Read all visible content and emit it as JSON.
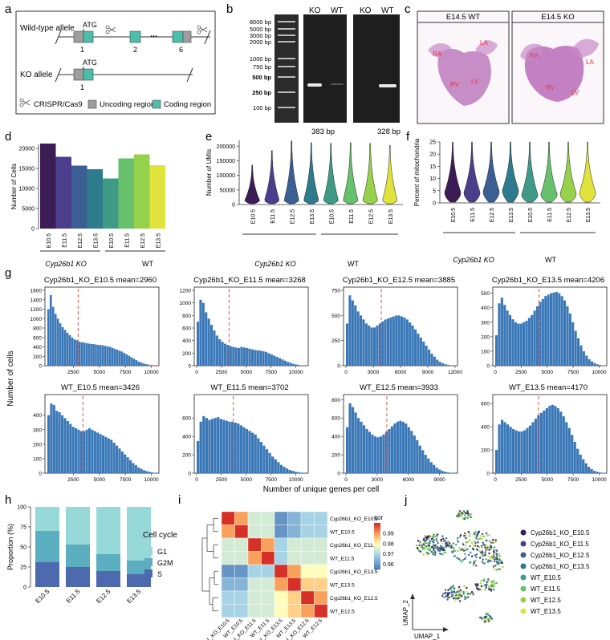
{
  "panel_labels": [
    "a",
    "b",
    "c",
    "d",
    "e",
    "f",
    "g",
    "h",
    "i",
    "j"
  ],
  "panel_a": {
    "wt_label": "Wild-type allele",
    "ko_label": "KO allele",
    "atg": "ATG",
    "exon_labels": [
      "1",
      "2",
      "6"
    ],
    "dots": "...",
    "legend": {
      "crispr": "CRISPR/Cas9",
      "uncoding": "Uncoding region",
      "coding": "Coding region"
    },
    "colors": {
      "uncoding": "#9e9e9e",
      "coding": "#4bbfa9"
    }
  },
  "panel_b": {
    "ladder": [
      "8000 bp",
      "5000 bp",
      "3000 bp",
      "2000 bp",
      "1000 bp",
      "750 bp",
      "500 bp",
      "250 bp",
      "100 bp"
    ],
    "lane_headers_1": [
      "KO",
      "WT"
    ],
    "lane_headers_2": [
      "KO",
      "WT"
    ],
    "product_1": "383 bp",
    "product_2": "328 bp"
  },
  "panel_c": {
    "wt_title": "E14.5 WT",
    "ko_title": "E14.5 KO",
    "wt_labels": [
      "RA",
      "LA",
      "RV",
      "LV"
    ],
    "ko_labels": [
      "RA",
      "LA",
      "RV",
      "LV"
    ]
  },
  "groups": {
    "ko": "Cyp26b1 KO",
    "wt": "WT"
  },
  "stage_labels": [
    "E10.5",
    "E11.5",
    "E12.5",
    "E13.5",
    "E10.5",
    "E11.5",
    "E12.5",
    "E13.5"
  ],
  "palette": [
    "#3b1c55",
    "#4b3e8d",
    "#3c5f93",
    "#2d7b8c",
    "#3f9b86",
    "#67c06b",
    "#96d14c",
    "#dfe33b"
  ],
  "panel_d": {
    "chart_data": {
      "type": "bar",
      "ylabel": "Number of Cells",
      "ylim": [
        0,
        21000
      ],
      "yticks": [
        0,
        5000,
        10000,
        15000,
        20000
      ],
      "categories": [
        "E10.5",
        "E11.5",
        "E12.5",
        "E13.5",
        "E10.5",
        "E11.5",
        "E12.5",
        "E13.5"
      ],
      "values": [
        21200,
        17900,
        15700,
        14800,
        12500,
        17500,
        18500,
        15800
      ]
    }
  },
  "panel_e": {
    "chart_data": {
      "type": "violin",
      "ylabel": "Number of UMIs",
      "ylim": [
        0,
        220000
      ],
      "yticks": [
        0,
        50000,
        100000,
        150000,
        200000
      ],
      "categories": [
        "E10.5",
        "E11.5",
        "E12.5",
        "E13.5",
        "E10.5",
        "E11.5",
        "E12.5",
        "E13.5"
      ],
      "max_values": [
        135000,
        185000,
        218000,
        212000,
        210000,
        212000,
        210000,
        203000
      ]
    }
  },
  "panel_f": {
    "chart_data": {
      "type": "violin",
      "ylabel": "Percent of mitochondria",
      "ylim": [
        0,
        25
      ],
      "yticks": [
        0,
        5,
        10,
        15,
        20,
        25
      ],
      "categories": [
        "E10.5",
        "E11.5",
        "E12.5",
        "E13.5",
        "E10.5",
        "E11.5",
        "E12.5",
        "E13.5"
      ],
      "max_values": [
        25,
        25,
        25,
        25,
        25,
        25,
        25,
        25
      ]
    }
  },
  "panel_g": {
    "ylabel": "Number of cells",
    "xlabel": "Number of unique genes per cell",
    "bar_color": "#3a78b8",
    "mean_line_color": "#d9534f",
    "chart_data": [
      {
        "type": "bar",
        "title": "Cyp26b1_KO_E10.5 mean=2960",
        "mean": 2960,
        "xlim": [
          0,
          10500
        ],
        "xticks": [
          2500,
          5000,
          7500,
          10000
        ],
        "ylim": [
          0,
          1600
        ],
        "yticks": [
          0,
          200,
          400,
          600,
          800,
          1000,
          1200,
          1400,
          1600
        ],
        "values": [
          1200,
          1500,
          1250,
          1100,
          1000,
          900,
          820,
          760,
          700,
          650,
          600,
          560,
          540,
          510,
          500,
          490,
          480,
          470,
          460,
          460,
          450,
          440,
          440,
          430,
          420,
          410,
          400,
          380,
          360,
          340,
          320,
          300,
          270,
          240,
          210,
          180,
          150,
          120,
          90,
          70,
          50,
          35,
          25,
          15,
          10,
          5
        ]
      },
      {
        "type": "bar",
        "title": "Cyp26b1_KO_E11.5 mean=3268",
        "mean": 3268,
        "xlim": [
          0,
          11000
        ],
        "xticks": [
          0,
          2500,
          5000,
          7500,
          10000
        ],
        "ylim": [
          0,
          1200
        ],
        "yticks": [
          0,
          200,
          400,
          600,
          800,
          1000,
          1200
        ],
        "values": [
          700,
          1050,
          1000,
          850,
          750,
          650,
          560,
          480,
          420,
          380,
          350,
          330,
          310,
          300,
          290,
          280,
          300,
          290,
          280,
          270,
          260,
          250,
          245,
          240,
          230,
          220,
          200,
          180,
          160,
          140,
          120,
          100,
          80,
          60,
          45,
          30,
          20,
          12,
          6,
          3
        ]
      },
      {
        "type": "bar",
        "title": "Cyp26b1_KO_E12.5 mean=3885",
        "mean": 3885,
        "xlim": [
          0,
          12000
        ],
        "xticks": [
          0,
          3000,
          6000,
          9000,
          12000
        ],
        "ylim": [
          0,
          750
        ],
        "yticks": [
          0,
          250,
          500,
          750
        ],
        "values": [
          420,
          700,
          650,
          600,
          540,
          500,
          460,
          420,
          400,
          380,
          380,
          400,
          420,
          440,
          460,
          470,
          480,
          490,
          500,
          500,
          490,
          480,
          460,
          430,
          400,
          360,
          320,
          280,
          240,
          200,
          160,
          120,
          90,
          60,
          40,
          25,
          15,
          8,
          4,
          2
        ]
      },
      {
        "type": "bar",
        "title": "Cyp26b1_KO_E13.5 mean=4206",
        "mean": 4206,
        "xlim": [
          0,
          10500
        ],
        "xticks": [
          0,
          2500,
          5000,
          7500,
          10000
        ],
        "ylim": [
          0,
          520
        ],
        "yticks": [
          0,
          100,
          200,
          300,
          400,
          500
        ],
        "values": [
          210,
          430,
          470,
          420,
          380,
          350,
          320,
          300,
          290,
          290,
          300,
          310,
          330,
          350,
          380,
          410,
          440,
          460,
          480,
          490,
          500,
          505,
          510,
          500,
          480,
          450,
          410,
          360,
          300,
          240,
          190,
          140,
          100,
          70,
          45,
          30,
          18,
          10,
          5,
          2
        ]
      },
      {
        "type": "bar",
        "title": "WT_E10.5 mean=3426",
        "mean": 3426,
        "xlim": [
          0,
          10500
        ],
        "xticks": [
          2500,
          5000,
          7500,
          10000
        ],
        "ylim": [
          0,
          520
        ],
        "yticks": [
          0,
          100,
          200,
          300,
          400
        ],
        "values": [
          400,
          480,
          470,
          430,
          420,
          400,
          380,
          360,
          340,
          320,
          310,
          300,
          290,
          290,
          300,
          310,
          300,
          290,
          280,
          270,
          260,
          250,
          240,
          230,
          210,
          190,
          170,
          150,
          130,
          110,
          90,
          70,
          55,
          40,
          30,
          20,
          14,
          9,
          5,
          3
        ]
      },
      {
        "type": "bar",
        "title": "WT_E11.5 mean=3702",
        "mean": 3702,
        "xlim": [
          0,
          11000
        ],
        "xticks": [
          0,
          2500,
          5000,
          7500,
          10000
        ],
        "ylim": [
          0,
          820
        ],
        "yticks": [
          0,
          200,
          400,
          600
        ],
        "values": [
          350,
          560,
          620,
          600,
          580,
          590,
          600,
          610,
          590,
          580,
          570,
          560,
          560,
          550,
          540,
          520,
          500,
          480,
          460,
          440,
          420,
          380,
          340,
          300,
          260,
          220,
          180,
          150,
          120,
          90,
          70,
          50,
          35,
          25,
          15,
          10,
          6,
          3
        ]
      },
      {
        "type": "bar",
        "title": "WT_E12.5 mean=3933",
        "mean": 3933,
        "xlim": [
          0,
          10500
        ],
        "xticks": [
          0,
          3000,
          6000,
          9000
        ],
        "ylim": [
          0,
          820
        ],
        "yticks": [
          0,
          200,
          400,
          600,
          800
        ],
        "values": [
          500,
          760,
          720,
          660,
          600,
          560,
          520,
          480,
          450,
          420,
          400,
          390,
          400,
          420,
          450,
          480,
          510,
          540,
          560,
          570,
          560,
          540,
          500,
          460,
          410,
          360,
          300,
          250,
          200,
          160,
          120,
          90,
          60,
          40,
          25,
          15,
          8,
          4,
          2
        ]
      },
      {
        "type": "bar",
        "title": "WT_E13.5 mean=4170",
        "mean": 4170,
        "xlim": [
          0,
          10500
        ],
        "xticks": [
          0,
          2500,
          5000,
          7500,
          10000
        ],
        "ylim": [
          0,
          650
        ],
        "yticks": [
          0,
          200,
          400,
          600
        ],
        "values": [
          200,
          420,
          460,
          440,
          420,
          400,
          380,
          370,
          360,
          360,
          370,
          390,
          410,
          440,
          470,
          500,
          520,
          540,
          560,
          580,
          590,
          580,
          560,
          530,
          490,
          440,
          390,
          330,
          270,
          210,
          160,
          120,
          85,
          55,
          35,
          20,
          12,
          6,
          3
        ]
      }
    ]
  },
  "panel_h": {
    "chart_data": {
      "type": "bar",
      "stacked": true,
      "ylabel": "Proportion (%)",
      "ylim": [
        0,
        100
      ],
      "yticks": [
        0,
        25,
        50,
        75,
        100
      ],
      "categories": [
        "E10.5",
        "E11.5",
        "E12.5",
        "E13.5"
      ],
      "series": [
        {
          "name": "S",
          "color": "#4e6aaf",
          "values": [
            31,
            25,
            20,
            16
          ]
        },
        {
          "name": "G2M",
          "color": "#5aaec0",
          "values": [
            39,
            28,
            21,
            17
          ]
        },
        {
          "name": "G1",
          "color": "#97d8d8",
          "values": [
            30,
            47,
            59,
            67
          ]
        }
      ],
      "legend_title": "Cell cycle",
      "legend_order": [
        "G1",
        "G2M",
        "S"
      ]
    }
  },
  "panel_i": {
    "chart_data": {
      "type": "heatmap",
      "rows": [
        "Cyp26b1_KO_E10.5",
        "WT_E10.5",
        "Cyp26b1_KO_E11.5",
        "WT_E11.5",
        "Cyp26b1_KO_E13.5",
        "WT_E13.5",
        "Cyp26b1_KO_E12.5",
        "WT_E12.5"
      ],
      "cols": [
        "Cyp26b1_KO_E10.5",
        "WT_E10.5",
        "Cyp26b1_KO_E11.5",
        "WT_E11.5",
        "Cyp26b1_KO_E13.5",
        "WT_E13.5",
        "Cyp26b1_KO_E12.5",
        "WT_E12.5"
      ],
      "values": [
        [
          1.0,
          0.99,
          0.975,
          0.975,
          0.96,
          0.965,
          0.97,
          0.97
        ],
        [
          0.99,
          1.0,
          0.975,
          0.975,
          0.96,
          0.965,
          0.97,
          0.97
        ],
        [
          0.975,
          0.975,
          1.0,
          0.99,
          0.97,
          0.975,
          0.975,
          0.975
        ],
        [
          0.975,
          0.975,
          0.99,
          1.0,
          0.97,
          0.975,
          0.975,
          0.975
        ],
        [
          0.96,
          0.96,
          0.97,
          0.97,
          1.0,
          0.99,
          0.98,
          0.98
        ],
        [
          0.965,
          0.965,
          0.975,
          0.975,
          0.99,
          1.0,
          0.985,
          0.985
        ],
        [
          0.97,
          0.97,
          0.975,
          0.975,
          0.98,
          0.985,
          1.0,
          0.99
        ],
        [
          0.97,
          0.97,
          0.975,
          0.975,
          0.98,
          0.985,
          0.99,
          1.0
        ]
      ],
      "legend_title": "cor",
      "legend_ticks": [
        "0.99",
        "0.98",
        "0.97",
        "0.96"
      ],
      "vmin": 0.955,
      "vmax": 1.0
    }
  },
  "panel_j": {
    "xlabel": "UMAP_1",
    "ylabel": "UMAP_2",
    "legend": [
      "Cyp26b1_KO_E10.5",
      "Cyp26b1_KO_E11.5",
      "Cyp26b1_KO_E12.5",
      "Cyp26b1_KO_E13.5",
      "WT_E10.5",
      "WT_E11.5",
      "WT_E12.5",
      "WT_E13.5"
    ]
  }
}
